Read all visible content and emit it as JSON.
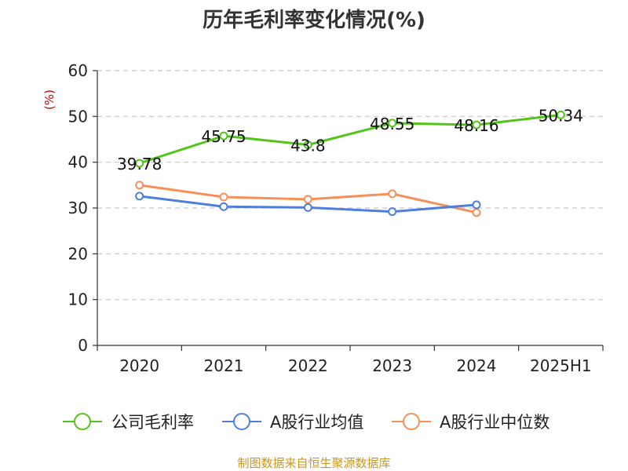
{
  "chart_data": {
    "type": "line",
    "title": "历年毛利率变化情况(%)",
    "ylabel": "(%)",
    "xlabel": "",
    "categories": [
      "2020",
      "2021",
      "2022",
      "2023",
      "2024",
      "2025H1"
    ],
    "ylim": [
      0,
      60
    ],
    "yticks": [
      0,
      10,
      20,
      30,
      40,
      50,
      60
    ],
    "grid": true,
    "legend_position": "bottom",
    "series": [
      {
        "name": "公司毛利率",
        "color": "#52c41a",
        "values": [
          39.78,
          45.75,
          43.8,
          48.55,
          48.16,
          50.34
        ],
        "data_labels": [
          "39.78",
          "45.75",
          "43.8",
          "48.55",
          "48.16",
          "50.34"
        ]
      },
      {
        "name": "A股行业均值",
        "color": "#4e7fdc",
        "values": [
          32.6,
          30.3,
          30.1,
          29.2,
          30.7,
          null
        ]
      },
      {
        "name": "A股行业中位数",
        "color": "#f59058",
        "values": [
          35.0,
          32.4,
          31.9,
          33.1,
          29.0,
          null
        ]
      }
    ],
    "source": "制图数据来自恒生聚源数据库"
  }
}
